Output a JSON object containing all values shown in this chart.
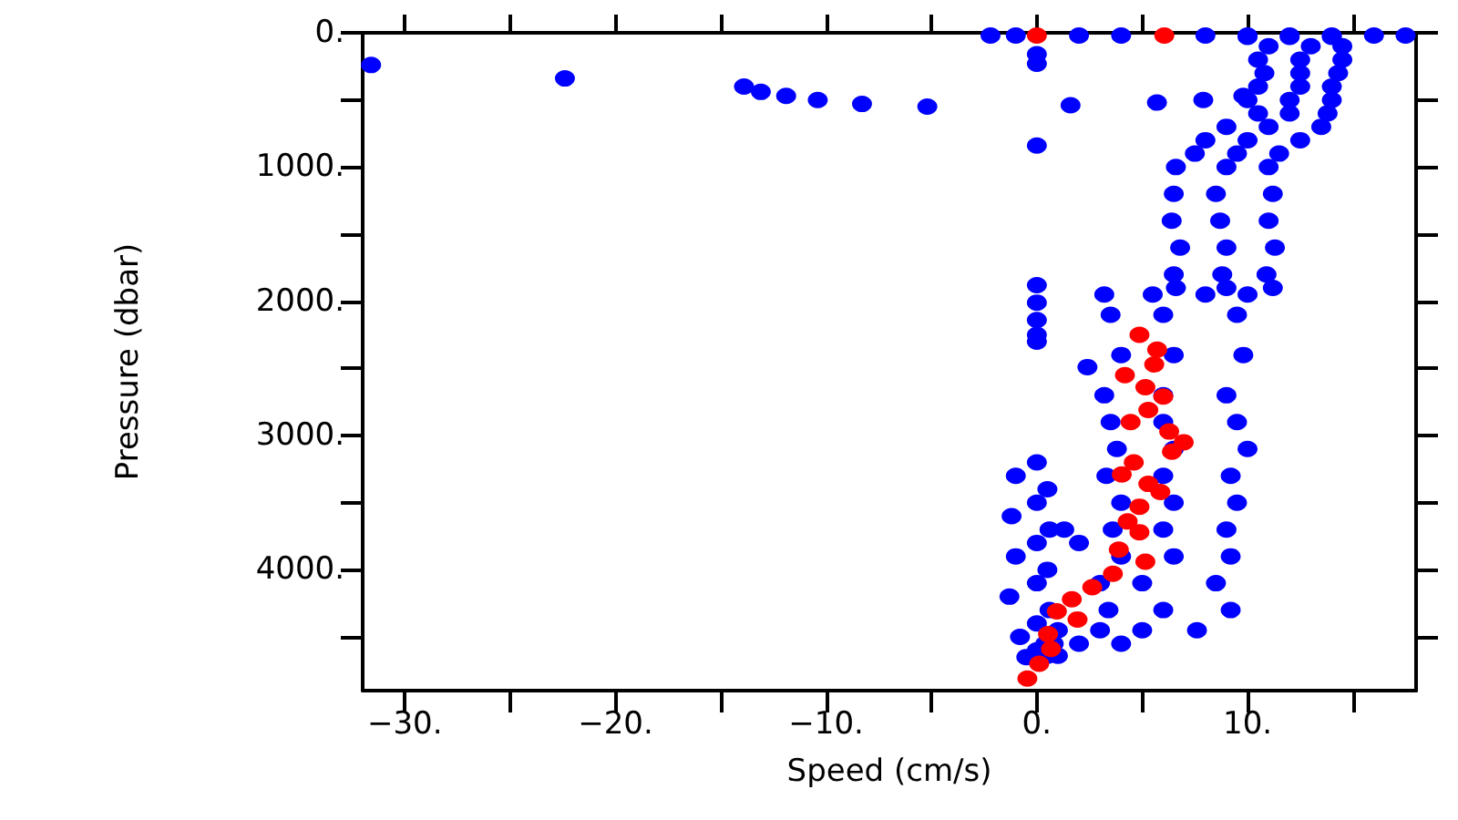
{
  "chart_data": {
    "type": "scatter",
    "xlabel": "Speed (cm/s)",
    "ylabel": "Pressure (dbar)",
    "xlim": [
      -32,
      18
    ],
    "ylim": [
      4900,
      0
    ],
    "xticks": [
      {
        "value": -30,
        "label": "−30."
      },
      {
        "value": -25,
        "label": null
      },
      {
        "value": -20,
        "label": "−20."
      },
      {
        "value": -15,
        "label": null
      },
      {
        "value": -10,
        "label": "−10."
      },
      {
        "value": -5,
        "label": null
      },
      {
        "value": 0,
        "label": "0."
      },
      {
        "value": 5,
        "label": null
      },
      {
        "value": 10,
        "label": "10."
      },
      {
        "value": 15,
        "label": null
      }
    ],
    "yticks": [
      {
        "value": 0,
        "label": "0."
      },
      {
        "value": 500,
        "label": null
      },
      {
        "value": 1000,
        "label": "1000."
      },
      {
        "value": 1500,
        "label": null
      },
      {
        "value": 2000,
        "label": "2000."
      },
      {
        "value": 2500,
        "label": null
      },
      {
        "value": 3000,
        "label": "3000."
      },
      {
        "value": 3500,
        "label": null
      },
      {
        "value": 4000,
        "label": "4000."
      },
      {
        "value": 4500,
        "label": null
      }
    ],
    "grid": false,
    "marker": "circle",
    "series": [
      {
        "color": "#0000ff",
        "x": [
          -31.6,
          -22.4,
          -13.9,
          -13.1,
          -11.9,
          -10.4,
          -8.3,
          -5.2,
          1.6,
          5.7,
          7.9,
          9.8,
          -2.2,
          -1,
          2,
          4,
          8,
          10,
          12,
          14,
          16,
          17.5,
          0,
          0,
          0,
          0,
          0,
          0,
          0,
          0,
          10,
          12,
          14,
          11,
          13,
          14.5,
          10.5,
          12.5,
          14.5,
          10.8,
          12.5,
          14.3,
          10.5,
          12.5,
          14,
          10,
          12,
          14,
          10.5,
          12,
          13.8,
          9,
          11,
          13.5,
          8,
          10,
          12.5,
          7.5,
          9.5,
          11.5,
          6.6,
          9,
          11,
          6.5,
          8.5,
          11.2,
          6.4,
          8.7,
          11,
          6.8,
          9,
          11.3,
          6.5,
          8.8,
          10.9,
          6.6,
          9,
          11.2,
          3.2,
          5.5,
          8,
          10,
          3.5,
          6,
          9.5,
          2.4,
          4,
          6.5,
          9.8,
          3.2,
          6,
          9,
          3.5,
          6,
          9.5,
          3.8,
          6.5,
          10,
          3.3,
          6,
          9.2,
          4,
          6.5,
          9.5,
          3.6,
          6,
          9,
          1.3,
          2,
          4,
          6.5,
          9.2,
          3,
          5,
          8.5,
          3.4,
          6,
          9.2,
          1,
          3,
          5,
          7.6,
          0.8,
          2,
          4,
          0.5,
          1,
          0,
          -1,
          0.5,
          0,
          -1.2,
          0.6,
          0,
          -1,
          0.5,
          0,
          -1.3,
          0.6,
          0,
          -0.8,
          0.4,
          0,
          -0.5
        ],
        "values": [
          240,
          340,
          400,
          440,
          470,
          500,
          530,
          550,
          540,
          520,
          500,
          470,
          20,
          20,
          20,
          20,
          20,
          20,
          20,
          20,
          20,
          20,
          160,
          230,
          840,
          1880,
          2010,
          2140,
          2250,
          2300,
          30,
          30,
          30,
          100,
          100,
          100,
          200,
          200,
          200,
          300,
          300,
          300,
          400,
          400,
          400,
          500,
          500,
          500,
          600,
          600,
          600,
          700,
          700,
          700,
          800,
          800,
          800,
          900,
          900,
          900,
          1000,
          1000,
          1000,
          1200,
          1200,
          1200,
          1400,
          1400,
          1400,
          1600,
          1600,
          1600,
          1800,
          1800,
          1800,
          1900,
          1900,
          1900,
          1950,
          1950,
          1950,
          1950,
          2100,
          2100,
          2100,
          2490,
          2400,
          2400,
          2400,
          2700,
          2700,
          2700,
          2900,
          2900,
          2900,
          3100,
          3100,
          3100,
          3300,
          3300,
          3300,
          3500,
          3500,
          3500,
          3700,
          3700,
          3700,
          3700,
          3800,
          3900,
          3900,
          3900,
          4100,
          4100,
          4100,
          4300,
          4300,
          4300,
          4450,
          4450,
          4450,
          4450,
          4550,
          4550,
          4550,
          4640,
          4640,
          3200,
          3300,
          3400,
          3500,
          3600,
          3700,
          3800,
          3900,
          4000,
          4100,
          4200,
          4300,
          4400,
          4500,
          4550,
          4600,
          4650
        ]
      },
      {
        "color": "#ff0000",
        "x": [
          0,
          6.05,
          4.87,
          5.71,
          5.57,
          4.18,
          5.15,
          6.0,
          5.29,
          4.45,
          6.28,
          6.97,
          6.41,
          4.6,
          4.03,
          5.29,
          5.86,
          4.87,
          4.31,
          4.87,
          3.89,
          5.15,
          3.61,
          2.63,
          1.66,
          0.95,
          1.93,
          0.53,
          0.67,
          0.11,
          -0.45
        ],
        "values": [
          20,
          20,
          2250,
          2360,
          2470,
          2550,
          2640,
          2710,
          2810,
          2900,
          2970,
          3050,
          3120,
          3200,
          3290,
          3360,
          3420,
          3530,
          3640,
          3720,
          3850,
          3940,
          4030,
          4130,
          4220,
          4310,
          4370,
          4480,
          4590,
          4700,
          4810
        ]
      }
    ]
  }
}
